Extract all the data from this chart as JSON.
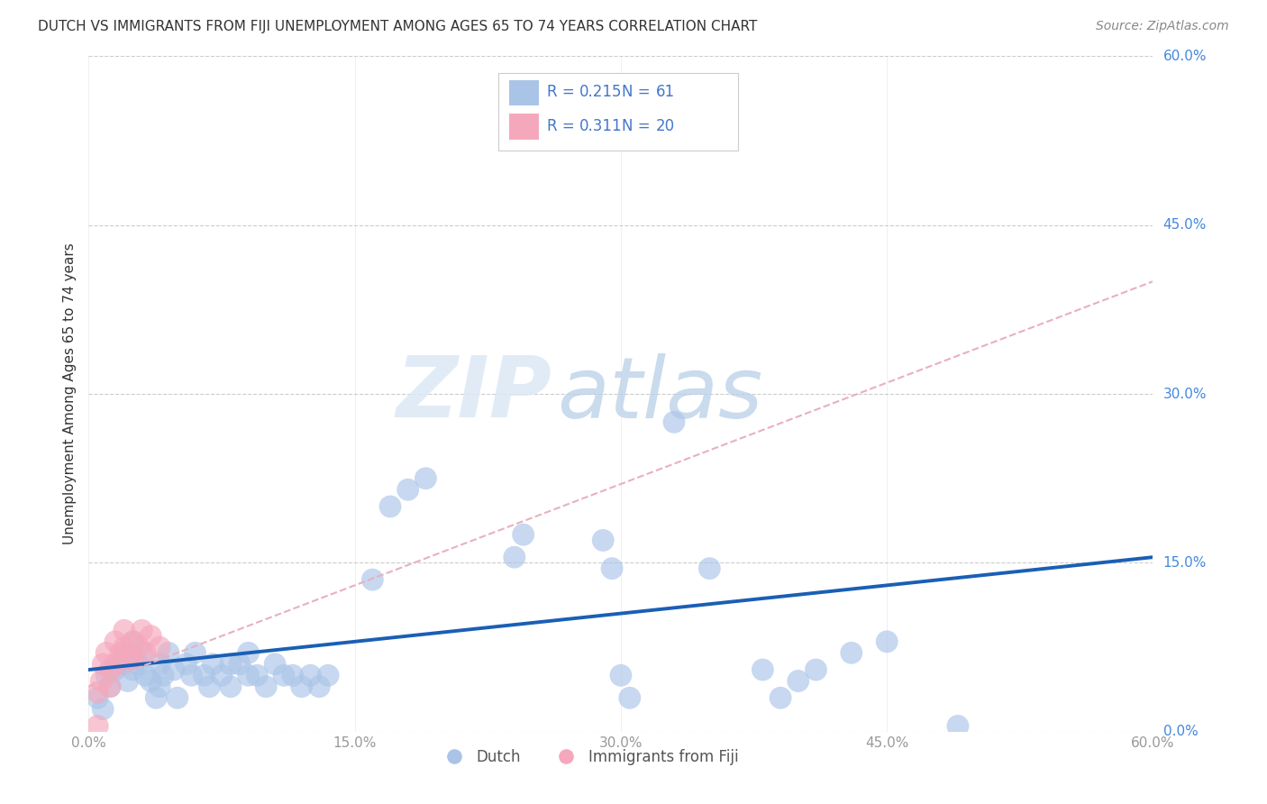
{
  "title": "DUTCH VS IMMIGRANTS FROM FIJI UNEMPLOYMENT AMONG AGES 65 TO 74 YEARS CORRELATION CHART",
  "source": "Source: ZipAtlas.com",
  "ylabel": "Unemployment Among Ages 65 to 74 years",
  "xlim": [
    0.0,
    0.6
  ],
  "ylim": [
    0.0,
    0.6
  ],
  "xtick_labels": [
    "0.0%",
    "15.0%",
    "30.0%",
    "45.0%",
    "60.0%"
  ],
  "xtick_vals": [
    0.0,
    0.15,
    0.3,
    0.45,
    0.6
  ],
  "ytick_vals": [
    0.0,
    0.15,
    0.3,
    0.45,
    0.6
  ],
  "right_tick_labels": [
    "0.0%",
    "15.0%",
    "30.0%",
    "45.0%",
    "60.0%"
  ],
  "dutch_color": "#aac4e8",
  "fiji_color": "#f5a8bc",
  "dutch_line_color": "#1a5fb4",
  "fiji_line_color": "#e8b0c0",
  "legend_R_dutch": "0.215",
  "legend_N_dutch": "61",
  "legend_R_fiji": "0.311",
  "legend_N_fiji": "20",
  "legend_text_color": "#4477cc",
  "dutch_scatter": [
    [
      0.005,
      0.03
    ],
    [
      0.008,
      0.02
    ],
    [
      0.01,
      0.05
    ],
    [
      0.012,
      0.04
    ],
    [
      0.015,
      0.055
    ],
    [
      0.018,
      0.06
    ],
    [
      0.02,
      0.07
    ],
    [
      0.022,
      0.045
    ],
    [
      0.025,
      0.055
    ],
    [
      0.025,
      0.08
    ],
    [
      0.028,
      0.06
    ],
    [
      0.03,
      0.07
    ],
    [
      0.032,
      0.05
    ],
    [
      0.035,
      0.045
    ],
    [
      0.038,
      0.03
    ],
    [
      0.04,
      0.06
    ],
    [
      0.04,
      0.04
    ],
    [
      0.042,
      0.05
    ],
    [
      0.045,
      0.07
    ],
    [
      0.048,
      0.055
    ],
    [
      0.05,
      0.03
    ],
    [
      0.055,
      0.06
    ],
    [
      0.058,
      0.05
    ],
    [
      0.06,
      0.07
    ],
    [
      0.065,
      0.05
    ],
    [
      0.068,
      0.04
    ],
    [
      0.07,
      0.06
    ],
    [
      0.075,
      0.05
    ],
    [
      0.08,
      0.06
    ],
    [
      0.08,
      0.04
    ],
    [
      0.085,
      0.06
    ],
    [
      0.09,
      0.05
    ],
    [
      0.09,
      0.07
    ],
    [
      0.095,
      0.05
    ],
    [
      0.1,
      0.04
    ],
    [
      0.105,
      0.06
    ],
    [
      0.11,
      0.05
    ],
    [
      0.115,
      0.05
    ],
    [
      0.12,
      0.04
    ],
    [
      0.125,
      0.05
    ],
    [
      0.13,
      0.04
    ],
    [
      0.135,
      0.05
    ],
    [
      0.16,
      0.135
    ],
    [
      0.17,
      0.2
    ],
    [
      0.18,
      0.215
    ],
    [
      0.19,
      0.225
    ],
    [
      0.24,
      0.155
    ],
    [
      0.245,
      0.175
    ],
    [
      0.29,
      0.17
    ],
    [
      0.295,
      0.145
    ],
    [
      0.3,
      0.05
    ],
    [
      0.305,
      0.03
    ],
    [
      0.33,
      0.275
    ],
    [
      0.35,
      0.145
    ],
    [
      0.38,
      0.055
    ],
    [
      0.39,
      0.03
    ],
    [
      0.4,
      0.045
    ],
    [
      0.41,
      0.055
    ],
    [
      0.43,
      0.07
    ],
    [
      0.45,
      0.08
    ],
    [
      0.49,
      0.005
    ]
  ],
  "fiji_scatter": [
    [
      0.005,
      0.035
    ],
    [
      0.007,
      0.045
    ],
    [
      0.008,
      0.06
    ],
    [
      0.01,
      0.07
    ],
    [
      0.012,
      0.04
    ],
    [
      0.012,
      0.055
    ],
    [
      0.015,
      0.06
    ],
    [
      0.015,
      0.08
    ],
    [
      0.018,
      0.07
    ],
    [
      0.02,
      0.075
    ],
    [
      0.02,
      0.09
    ],
    [
      0.022,
      0.065
    ],
    [
      0.025,
      0.08
    ],
    [
      0.028,
      0.075
    ],
    [
      0.03,
      0.09
    ],
    [
      0.032,
      0.07
    ],
    [
      0.035,
      0.085
    ],
    [
      0.005,
      0.005
    ],
    [
      0.04,
      0.075
    ],
    [
      0.025,
      0.065
    ]
  ],
  "dutch_trend": [
    0.0,
    0.055,
    0.6,
    0.155
  ],
  "fiji_trend": [
    0.0,
    0.04,
    0.6,
    0.4
  ],
  "watermark_zip": "ZIP",
  "watermark_atlas": "atlas",
  "background_color": "#ffffff",
  "grid_color": "#cccccc"
}
